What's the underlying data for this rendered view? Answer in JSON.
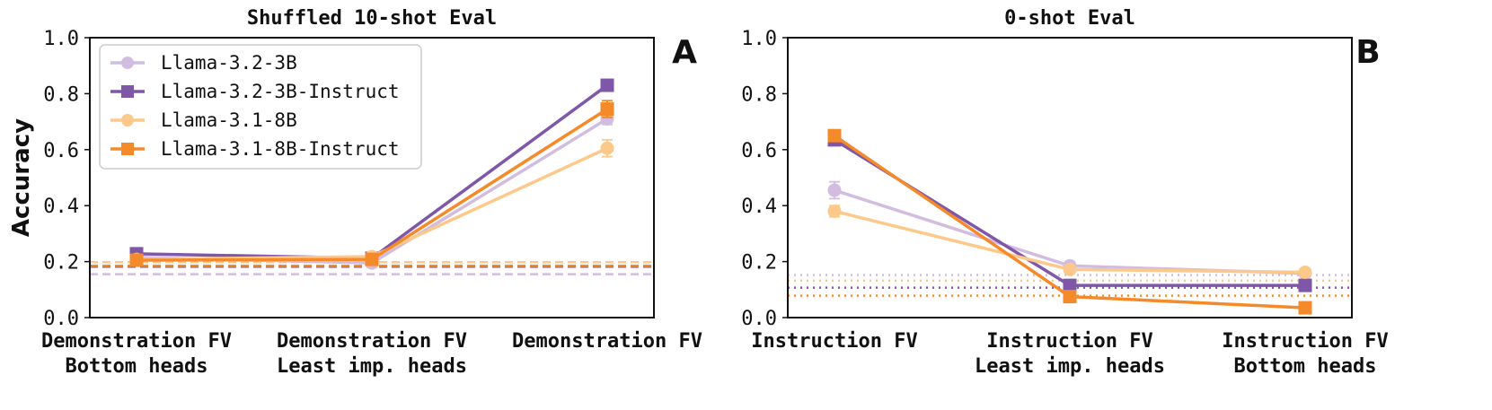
{
  "chart_data": [
    {
      "type": "line",
      "title": "Shuffled 10-shot Eval",
      "panel_label": "A",
      "ylabel": "Accuracy",
      "xlabel": "",
      "ylim": [
        0.0,
        1.0
      ],
      "yticks": [
        "0.0",
        "0.2",
        "0.4",
        "0.6",
        "0.8",
        "1.0"
      ],
      "categories": [
        [
          "Demonstration FV",
          "Bottom heads"
        ],
        [
          "Demonstration FV",
          "Least imp. heads"
        ],
        [
          "Demonstration FV"
        ]
      ],
      "legend": {
        "position": "top-left"
      },
      "baseline_style": "dashed",
      "series": [
        {
          "name": "Llama-3.2-3B",
          "color": "#d2bde0",
          "marker": "circle",
          "values": [
            0.215,
            0.195,
            0.71
          ],
          "errors": [
            0.01,
            0.015,
            0.02
          ],
          "baseline": 0.155
        },
        {
          "name": "Llama-3.2-3B-Instruct",
          "color": "#7e57a8",
          "marker": "square",
          "values": [
            0.228,
            0.212,
            0.83
          ],
          "errors": [
            0.01,
            0.012,
            0.012
          ],
          "baseline": 0.182
        },
        {
          "name": "Llama-3.1-8B",
          "color": "#fdc98a",
          "marker": "circle",
          "values": [
            0.208,
            0.218,
            0.605
          ],
          "errors": [
            0.012,
            0.012,
            0.03
          ],
          "baseline": 0.198
        },
        {
          "name": "Llama-3.1-8B-Instruct",
          "color": "#f58a2a",
          "marker": "square",
          "values": [
            0.205,
            0.208,
            0.745
          ],
          "errors": [
            0.012,
            0.01,
            0.03
          ],
          "baseline": 0.185
        }
      ]
    },
    {
      "type": "line",
      "title": "0-shot Eval",
      "panel_label": "B",
      "ylabel": "",
      "xlabel": "",
      "ylim": [
        0.0,
        1.0
      ],
      "yticks": [
        "0.0",
        "0.2",
        "0.4",
        "0.6",
        "0.8",
        "1.0"
      ],
      "categories": [
        [
          "Instruction FV"
        ],
        [
          "Instruction FV",
          "Least imp. heads"
        ],
        [
          "Instruction FV",
          "Bottom heads"
        ]
      ],
      "baseline_style": "dotted",
      "series": [
        {
          "name": "Llama-3.2-3B",
          "color": "#d2bde0",
          "marker": "circle",
          "values": [
            0.455,
            0.185,
            0.158
          ],
          "errors": [
            0.03,
            0.015,
            0.01
          ],
          "baseline": 0.152
        },
        {
          "name": "Llama-3.2-3B-Instruct",
          "color": "#7e57a8",
          "marker": "square",
          "values": [
            0.635,
            0.115,
            0.115
          ],
          "errors": [
            0.015,
            0.01,
            0.01
          ],
          "baseline": 0.107
        },
        {
          "name": "Llama-3.1-8B",
          "color": "#fdc98a",
          "marker": "circle",
          "values": [
            0.38,
            0.172,
            0.162
          ],
          "errors": [
            0.02,
            0.015,
            0.01
          ],
          "baseline": 0.132
        },
        {
          "name": "Llama-3.1-8B-Instruct",
          "color": "#f58a2a",
          "marker": "square",
          "values": [
            0.65,
            0.075,
            0.035
          ],
          "errors": [
            0.02,
            0.01,
            0.008
          ],
          "baseline": 0.078
        }
      ]
    }
  ]
}
